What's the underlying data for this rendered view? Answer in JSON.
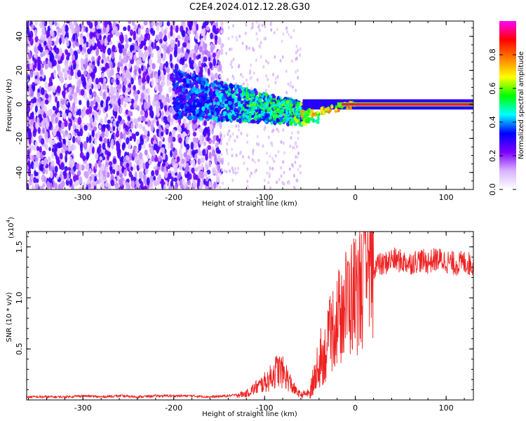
{
  "title": "C2E4.2024.012.12.28.G30",
  "chart_data": [
    {
      "type": "heatmap",
      "xlabel": "Height of straight line (km)",
      "ylabel": "Frequency (Hz)",
      "xlim": [
        -362,
        130
      ],
      "ylim": [
        -50,
        49
      ],
      "x_ticks": [
        -300,
        -200,
        -100,
        0,
        100
      ],
      "x_tick_labels": [
        "-300",
        "-200",
        "-100",
        "0",
        "100"
      ],
      "y_ticks": [
        -40,
        -20,
        0,
        20,
        40
      ],
      "y_tick_labels": [
        "-40",
        "-20",
        "0",
        "20",
        "40"
      ],
      "colorbar": {
        "label": "Normalized spectral amplitude",
        "range": [
          0.0,
          1.0
        ],
        "ticks": [
          0.0,
          0.2,
          0.4,
          0.6,
          0.8
        ],
        "tick_labels": [
          "0.0",
          "0.2",
          "0.4",
          "0.6",
          "0.8"
        ],
        "colors": [
          "#ffffff",
          "#d9b3ff",
          "#7b00ff",
          "#0000ff",
          "#00ffff",
          "#00ff00",
          "#ffff00",
          "#ff8000",
          "#ff0000",
          "#ff00ff"
        ]
      },
      "regions": [
        {
          "x": [
            -362,
            -150
          ],
          "freq_spread": [
            -50,
            49
          ],
          "amplitude": 0.1,
          "description_of": "noise"
        },
        {
          "x": [
            -150,
            -60
          ],
          "freq_center": [
            -2,
            -12
          ],
          "amplitude": 0.3
        },
        {
          "x": [
            -60,
            0
          ],
          "freq_center": [
            -10,
            0
          ],
          "amplitude": 0.6
        },
        {
          "x": [
            -20,
            130
          ],
          "freq_center": [
            0,
            0
          ],
          "amplitude": 0.95
        }
      ],
      "grid": false
    },
    {
      "type": "line",
      "xlabel": "Height of straight line (km)",
      "ylabel": "SNR (10 * v/v)",
      "y_multiplier": "(x10",
      "y_multiplier_exp": "4",
      "y_multiplier_close": ")",
      "xlim": [
        -362,
        130
      ],
      "ylim": [
        0,
        1.65
      ],
      "x_ticks": [
        -300,
        -200,
        -100,
        0,
        100
      ],
      "x_tick_labels": [
        "-300",
        "-200",
        "-100",
        "0",
        "100"
      ],
      "y_ticks": [
        0.5,
        1.0,
        1.5
      ],
      "y_tick_labels": [
        "0.5",
        "1.0",
        "1.5"
      ],
      "color": "#ee2222",
      "series": [
        {
          "x": [
            -362,
            -340,
            -320,
            -300,
            -280,
            -260,
            -240,
            -220,
            -200,
            -180,
            -160,
            -140,
            -130,
            -120,
            -115,
            -110,
            -105,
            -100,
            -95,
            -90,
            -85,
            -80,
            -75,
            -70,
            -65,
            -60,
            -55,
            -50,
            -45,
            -40,
            -36,
            -32,
            -28,
            -24,
            -20,
            -16,
            -12,
            -8,
            -4,
            0,
            4,
            8,
            12,
            16,
            20,
            25,
            30,
            40,
            50,
            60,
            70,
            80,
            90,
            100,
            110,
            120,
            130
          ],
          "y": [
            0.03,
            0.03,
            0.03,
            0.04,
            0.03,
            0.04,
            0.03,
            0.04,
            0.04,
            0.04,
            0.03,
            0.04,
            0.05,
            0.06,
            0.09,
            0.12,
            0.14,
            0.17,
            0.2,
            0.26,
            0.3,
            0.27,
            0.22,
            0.14,
            0.08,
            0.05,
            0.06,
            0.07,
            0.2,
            0.3,
            0.42,
            0.48,
            0.62,
            0.74,
            0.78,
            0.86,
            0.92,
            0.98,
            1.0,
            1.06,
            1.1,
            1.15,
            1.2,
            1.26,
            1.3,
            1.33,
            1.32,
            1.38,
            1.36,
            1.34,
            1.37,
            1.35,
            1.38,
            1.36,
            1.33,
            1.35,
            1.32
          ]
        }
      ],
      "grid": false
    }
  ]
}
